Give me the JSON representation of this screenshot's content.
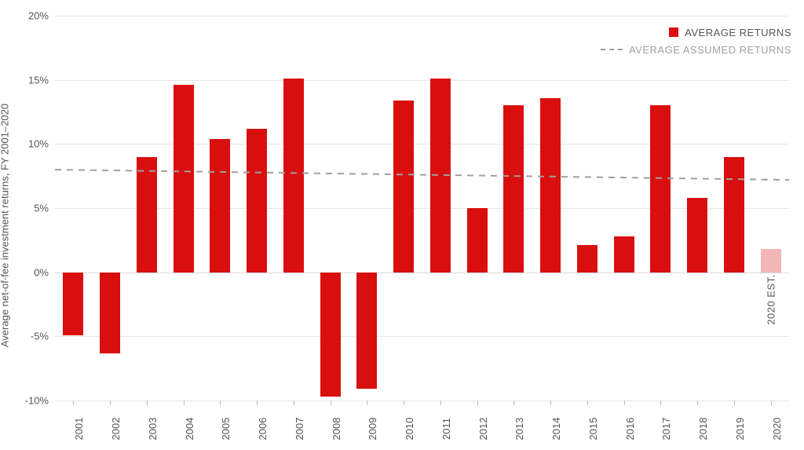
{
  "chart": {
    "type": "bar-with-line",
    "background_color": "#ffffff",
    "grid_color": "#e6e6e6",
    "baseline_color": "#d9d9d9",
    "tick_label_color": "#555555",
    "tick_label_fontsize": 13,
    "y_axis": {
      "label": "Average net-of-fee investment returns, FY 2001–2020",
      "label_fontsize": 13,
      "min": -10,
      "max": 20,
      "tick_step": 5,
      "ticks": [
        -10,
        -5,
        0,
        5,
        10,
        15,
        20
      ],
      "tick_format_suffix": "%"
    },
    "x_axis": {
      "categories": [
        "2001",
        "2002",
        "2003",
        "2004",
        "2005",
        "2006",
        "2007",
        "2008",
        "2009",
        "2010",
        "2011",
        "2012",
        "2013",
        "2014",
        "2015",
        "2016",
        "2017",
        "2018",
        "2019",
        "2020"
      ],
      "label_rotation_deg": -90
    },
    "bars": {
      "values": [
        -4.9,
        -6.3,
        9.0,
        14.6,
        10.4,
        11.2,
        15.1,
        -9.7,
        -9.1,
        13.4,
        15.1,
        5.0,
        13.0,
        13.6,
        2.1,
        2.8,
        13.0,
        5.8,
        9.0,
        1.8
      ],
      "colors": [
        "#d90f0f",
        "#d90f0f",
        "#d90f0f",
        "#d90f0f",
        "#d90f0f",
        "#d90f0f",
        "#d90f0f",
        "#d90f0f",
        "#d90f0f",
        "#d90f0f",
        "#d90f0f",
        "#d90f0f",
        "#d90f0f",
        "#d90f0f",
        "#d90f0f",
        "#d90f0f",
        "#d90f0f",
        "#d90f0f",
        "#d90f0f",
        "#f3b6b6"
      ],
      "width_fraction": 0.56
    },
    "assumed_line": {
      "start_value": 8.0,
      "end_value": 7.2,
      "color": "#a0a0a0",
      "dash": "8,7",
      "width": 2
    },
    "legend": {
      "returns_label": "AVERAGE RETURNS",
      "assumed_label": "AVERAGE ASSUMED RETURNS",
      "swatch_color": "#d90f0f"
    },
    "annotations": {
      "est_label": "2020 EST.",
      "est_for_category_index": 19
    }
  }
}
